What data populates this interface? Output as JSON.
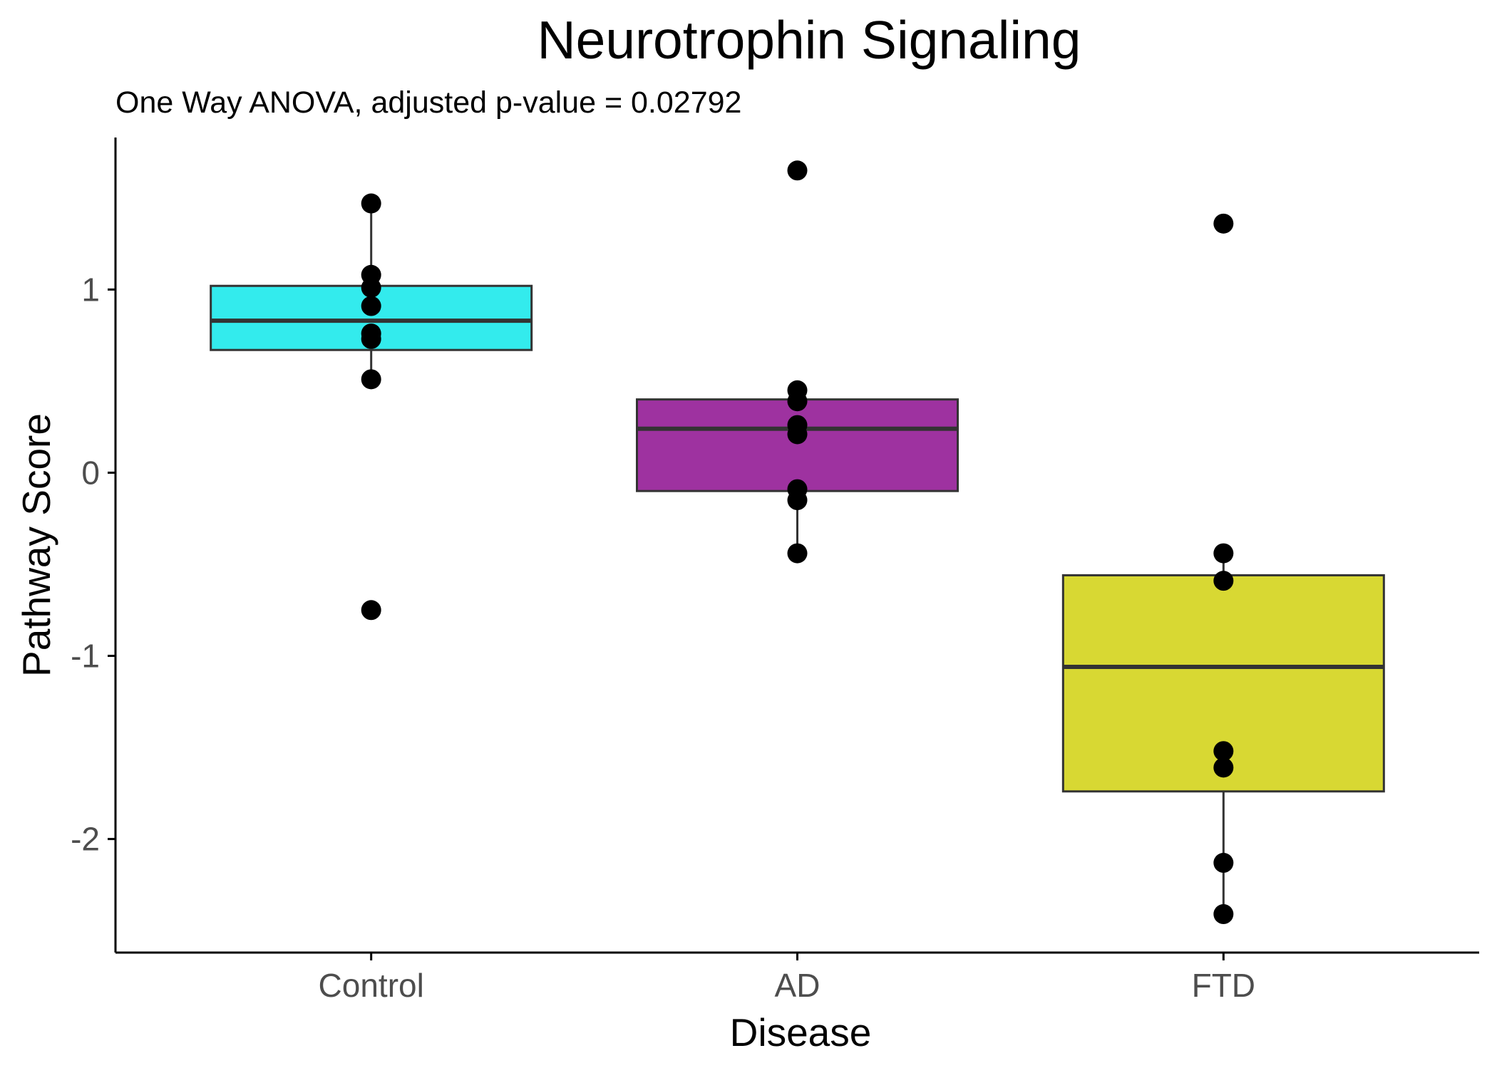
{
  "chart_data": {
    "type": "box",
    "title": "Neurotrophin Signaling",
    "subtitle": "One Way ANOVA, adjusted p-value = 0.02792",
    "xlabel": "Disease",
    "ylabel": "Pathway Score",
    "ylim": [
      -2.62,
      1.83
    ],
    "yticks": [
      {
        "value": 1,
        "label": "1"
      },
      {
        "value": 0,
        "label": "0"
      },
      {
        "value": -1,
        "label": "-1"
      },
      {
        "value": -2,
        "label": "-2"
      }
    ],
    "grid": false,
    "legend": "none",
    "categories": [
      "Control",
      "AD",
      "FTD"
    ],
    "groups": [
      {
        "category": "Control",
        "color": "#33ebed",
        "q1": 0.67,
        "median": 0.83,
        "q3": 1.02,
        "whisker_low": 0.51,
        "whisker_high": 1.47,
        "points": [
          1.47,
          1.08,
          1.01,
          0.91,
          0.76,
          0.73,
          0.51,
          -0.75
        ]
      },
      {
        "category": "AD",
        "color": "#9e32a0",
        "q1": -0.1,
        "median": 0.24,
        "q3": 0.4,
        "whisker_low": -0.44,
        "whisker_high": 0.45,
        "points": [
          1.65,
          0.45,
          0.39,
          0.26,
          0.21,
          -0.09,
          -0.15,
          -0.44
        ]
      },
      {
        "category": "FTD",
        "color": "#d8d833",
        "q1": -1.74,
        "median": -1.06,
        "q3": -0.56,
        "whisker_low": -2.41,
        "whisker_high": -0.44,
        "points": [
          1.36,
          -0.44,
          -0.59,
          -1.52,
          -1.61,
          -2.13,
          -2.41
        ]
      }
    ]
  }
}
